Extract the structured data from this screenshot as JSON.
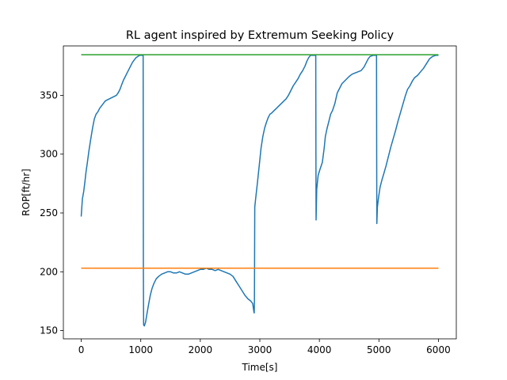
{
  "chart_data": {
    "type": "line",
    "title": "RL agent inspired by Extremum Seeking Policy",
    "xlabel": "Time[s]",
    "ylabel": "ROP[ft/hr]",
    "xlim": [
      -300,
      6300
    ],
    "ylim": [
      143,
      392
    ],
    "xticks": [
      0,
      1000,
      2000,
      3000,
      4000,
      5000,
      6000
    ],
    "yticks": [
      150,
      200,
      250,
      300,
      350
    ],
    "grid": false,
    "legend": "none",
    "series": [
      {
        "color": "#1f77b4",
        "points": [
          [
            0,
            247
          ],
          [
            20,
            262
          ],
          [
            40,
            268
          ],
          [
            60,
            276
          ],
          [
            80,
            285
          ],
          [
            100,
            292
          ],
          [
            130,
            303
          ],
          [
            160,
            313
          ],
          [
            190,
            322
          ],
          [
            220,
            330
          ],
          [
            250,
            334
          ],
          [
            280,
            336
          ],
          [
            310,
            339
          ],
          [
            340,
            341
          ],
          [
            370,
            343
          ],
          [
            400,
            345
          ],
          [
            430,
            346
          ],
          [
            470,
            347
          ],
          [
            510,
            348
          ],
          [
            550,
            349
          ],
          [
            590,
            350
          ],
          [
            620,
            352
          ],
          [
            650,
            355
          ],
          [
            680,
            359
          ],
          [
            710,
            363
          ],
          [
            740,
            366
          ],
          [
            770,
            369
          ],
          [
            800,
            372
          ],
          [
            830,
            375
          ],
          [
            860,
            378
          ],
          [
            890,
            380
          ],
          [
            920,
            382
          ],
          [
            950,
            383
          ],
          [
            980,
            384
          ],
          [
            1040,
            384
          ],
          [
            1044,
            200
          ],
          [
            1048,
            155
          ],
          [
            1060,
            154
          ],
          [
            1080,
            157
          ],
          [
            1100,
            163
          ],
          [
            1130,
            172
          ],
          [
            1160,
            180
          ],
          [
            1190,
            186
          ],
          [
            1220,
            190
          ],
          [
            1260,
            194
          ],
          [
            1300,
            196
          ],
          [
            1350,
            198
          ],
          [
            1400,
            199
          ],
          [
            1450,
            200
          ],
          [
            1500,
            200
          ],
          [
            1550,
            199
          ],
          [
            1600,
            199
          ],
          [
            1650,
            200
          ],
          [
            1700,
            199
          ],
          [
            1750,
            198
          ],
          [
            1800,
            198
          ],
          [
            1850,
            199
          ],
          [
            1900,
            200
          ],
          [
            1950,
            201
          ],
          [
            2000,
            202
          ],
          [
            2050,
            202
          ],
          [
            2100,
            203
          ],
          [
            2150,
            202
          ],
          [
            2200,
            202
          ],
          [
            2250,
            201
          ],
          [
            2300,
            202
          ],
          [
            2350,
            201
          ],
          [
            2400,
            200
          ],
          [
            2450,
            199
          ],
          [
            2500,
            198
          ],
          [
            2550,
            196
          ],
          [
            2600,
            192
          ],
          [
            2650,
            188
          ],
          [
            2700,
            184
          ],
          [
            2750,
            180
          ],
          [
            2800,
            177
          ],
          [
            2850,
            175
          ],
          [
            2880,
            173
          ],
          [
            2900,
            166
          ],
          [
            2905,
            165
          ],
          [
            2910,
            175
          ],
          [
            2915,
            255
          ],
          [
            2930,
            262
          ],
          [
            2960,
            276
          ],
          [
            2990,
            290
          ],
          [
            3020,
            305
          ],
          [
            3050,
            315
          ],
          [
            3080,
            322
          ],
          [
            3110,
            327
          ],
          [
            3140,
            331
          ],
          [
            3170,
            334
          ],
          [
            3200,
            335
          ],
          [
            3240,
            337
          ],
          [
            3280,
            339
          ],
          [
            3320,
            341
          ],
          [
            3360,
            343
          ],
          [
            3400,
            345
          ],
          [
            3440,
            347
          ],
          [
            3480,
            350
          ],
          [
            3520,
            354
          ],
          [
            3560,
            358
          ],
          [
            3600,
            361
          ],
          [
            3640,
            364
          ],
          [
            3680,
            368
          ],
          [
            3720,
            371
          ],
          [
            3760,
            375
          ],
          [
            3790,
            379
          ],
          [
            3820,
            382
          ],
          [
            3850,
            384
          ],
          [
            3900,
            384
          ],
          [
            3940,
            384
          ],
          [
            3942,
            300
          ],
          [
            3945,
            244
          ],
          [
            3955,
            270
          ],
          [
            3980,
            282
          ],
          [
            4010,
            287
          ],
          [
            4050,
            293
          ],
          [
            4080,
            305
          ],
          [
            4100,
            315
          ],
          [
            4130,
            322
          ],
          [
            4160,
            328
          ],
          [
            4190,
            334
          ],
          [
            4220,
            337
          ],
          [
            4260,
            343
          ],
          [
            4300,
            352
          ],
          [
            4340,
            356
          ],
          [
            4380,
            360
          ],
          [
            4420,
            362
          ],
          [
            4460,
            364
          ],
          [
            4500,
            366
          ],
          [
            4550,
            368
          ],
          [
            4600,
            369
          ],
          [
            4650,
            370
          ],
          [
            4700,
            371
          ],
          [
            4750,
            374
          ],
          [
            4790,
            378
          ],
          [
            4820,
            381
          ],
          [
            4850,
            383
          ],
          [
            4900,
            384
          ],
          [
            4960,
            384
          ],
          [
            4963,
            300
          ],
          [
            4965,
            241
          ],
          [
            4975,
            255
          ],
          [
            4990,
            262
          ],
          [
            5020,
            272
          ],
          [
            5050,
            278
          ],
          [
            5080,
            283
          ],
          [
            5120,
            290
          ],
          [
            5160,
            298
          ],
          [
            5200,
            306
          ],
          [
            5240,
            313
          ],
          [
            5280,
            320
          ],
          [
            5320,
            328
          ],
          [
            5360,
            335
          ],
          [
            5400,
            342
          ],
          [
            5440,
            349
          ],
          [
            5480,
            355
          ],
          [
            5520,
            358
          ],
          [
            5560,
            362
          ],
          [
            5600,
            365
          ],
          [
            5650,
            367
          ],
          [
            5700,
            370
          ],
          [
            5750,
            373
          ],
          [
            5800,
            377
          ],
          [
            5850,
            381
          ],
          [
            5900,
            383
          ],
          [
            5950,
            384
          ],
          [
            6000,
            384
          ]
        ]
      },
      {
        "color": "#ff7f0e",
        "points": [
          [
            0,
            203
          ],
          [
            6000,
            203
          ]
        ]
      },
      {
        "color": "#2ca02c",
        "points": [
          [
            0,
            384.5
          ],
          [
            6000,
            384.5
          ]
        ]
      }
    ]
  }
}
